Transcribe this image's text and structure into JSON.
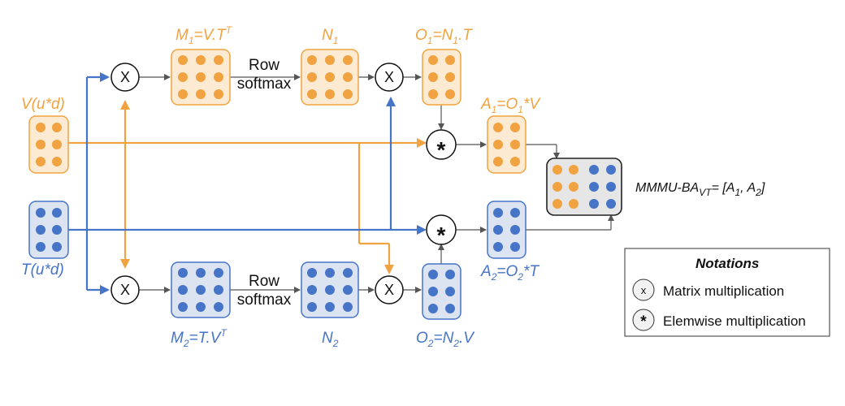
{
  "colors": {
    "orange": "#F0A340",
    "orange_fill": "#FCEBD2",
    "blue": "#4674C6",
    "blue_fill": "#DCE4F2",
    "gray": "#555555"
  },
  "labels": {
    "v_input": "V(u*d)",
    "t_input": "T(u*d)",
    "m1_main": "M",
    "m1_sub": "1",
    "m1_rest": "=V.T",
    "m1_sup": "T",
    "n1_main": "N",
    "n1_sub": "1",
    "o1_main": "O",
    "o1_sub": "1",
    "o1_mid": "=N",
    "o1_sub2": "1",
    "o1_rest": ".T",
    "a1_main": "A",
    "a1_sub": "1",
    "a1_mid": "=O",
    "a1_sub2": "1",
    "a1_rest": "*V",
    "m2_main": "M",
    "m2_sub": "2",
    "m2_rest": "=T.V",
    "m2_sup": "T",
    "n2_main": "N",
    "n2_sub": "2",
    "o2_main": "O",
    "o2_sub": "2",
    "o2_mid": "=N",
    "o2_sub2": "2",
    "o2_rest": ".V",
    "a2_main": "A",
    "a2_sub": "2",
    "a2_mid": "=O",
    "a2_sub2": "2",
    "a2_rest": "*T",
    "row_softmax_1a": "Row",
    "row_softmax_1b": "softmax",
    "row_softmax_2a": "Row",
    "row_softmax_2b": "softmax",
    "result_main": "MMMU-BA",
    "result_sub": "VT",
    "result_rest": "= [A",
    "result_sub1": "1",
    "result_comma": ", A",
    "result_sub2": "2",
    "result_close": "]"
  },
  "operators": {
    "matmul": "X",
    "elemwise": "*"
  },
  "legend": {
    "title": "Notations",
    "matmul_symbol": "x",
    "matmul_label": "Matrix multiplication",
    "elemwise_symbol": "*",
    "elemwise_label": "Elemwise multiplication"
  }
}
